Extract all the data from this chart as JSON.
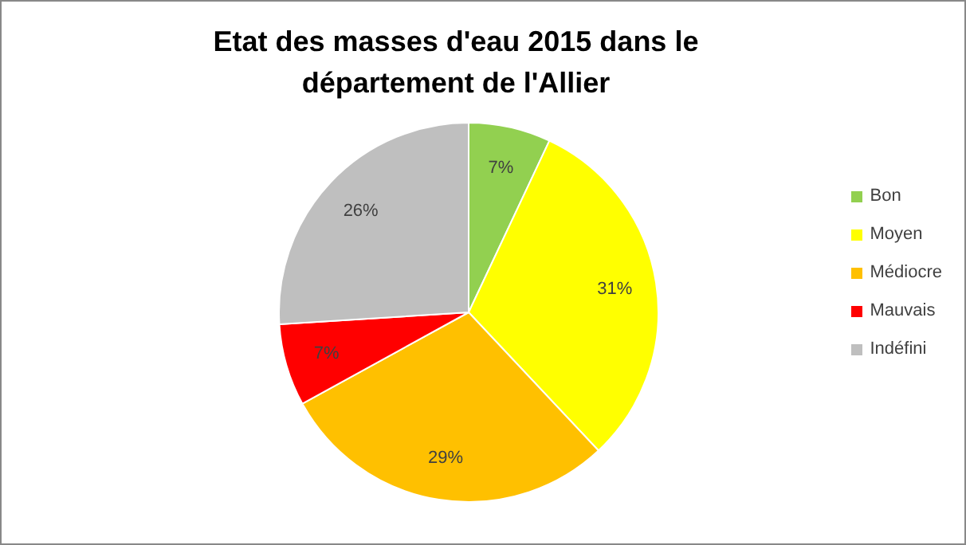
{
  "chart_data": {
    "type": "pie",
    "title": "Etat des masses d'eau 2015 dans le département de l'Allier",
    "categories": [
      "Bon",
      "Moyen",
      "Médiocre",
      "Mauvais",
      "Indéfini"
    ],
    "values": [
      7,
      31,
      29,
      7,
      26
    ],
    "colors": [
      "#92d050",
      "#ffff00",
      "#ffc000",
      "#ff0000",
      "#bfbfbf"
    ],
    "value_labels": [
      "7%",
      "31%",
      "29%",
      "7%",
      "26%"
    ],
    "legend": "right"
  }
}
